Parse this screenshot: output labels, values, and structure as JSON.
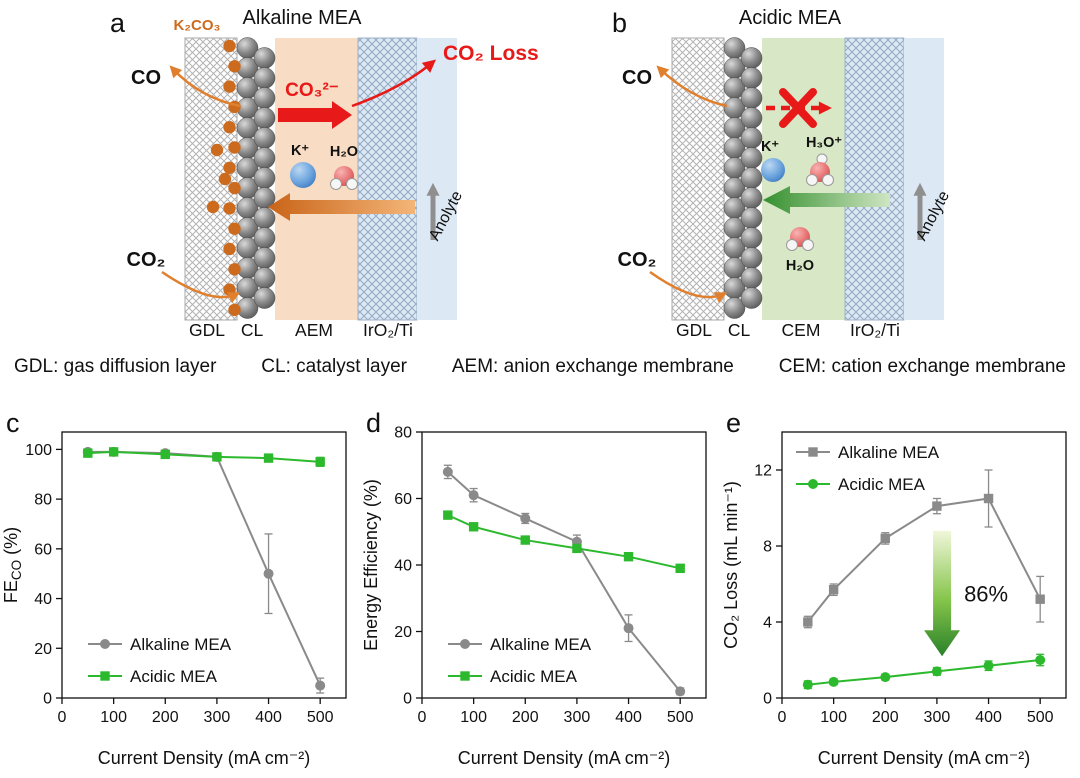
{
  "panels": {
    "a": {
      "letter": "a",
      "title": "Alkaline MEA",
      "k2co3_label": "K₂CO₃",
      "co_label": "CO",
      "co2_label": "CO₂",
      "carbonate_label": "CO₃²⁻",
      "co2_loss_label": "CO₂ Loss",
      "k_label": "K⁺",
      "h2o_label": "H₂O",
      "anolyte_label": "Anolyte",
      "layer_labels": [
        "GDL",
        "CL",
        "AEM",
        "IrO₂/Ti"
      ]
    },
    "b": {
      "letter": "b",
      "title": "Acidic MEA",
      "co_label": "CO",
      "co2_label": "CO₂",
      "k_label": "K⁺",
      "h3o_label": "H₃O⁺",
      "h2o_label": "H₂O",
      "anolyte_label": "Anolyte",
      "layer_labels": [
        "GDL",
        "CL",
        "CEM",
        "IrO₂/Ti"
      ]
    }
  },
  "abbreviations": [
    "GDL: gas diffusion layer",
    "CL: catalyst layer",
    "AEM: anion exchange membrane",
    "CEM: cation exchange membrane"
  ],
  "colors": {
    "alkaline_series": "#8a8a8a",
    "acidic_series": "#2db92d",
    "aem_fill": "#f8dcc3",
    "cem_fill": "#d8e7c5",
    "anolyte_fill": "#dce8f3",
    "carbonate_orange": "#cc6b1e",
    "alert_red": "#e81919"
  },
  "chart_data": [
    {
      "type": "line",
      "panel": "c",
      "x": [
        50,
        100,
        200,
        300,
        400,
        500
      ],
      "xlabel": "Current Density (mA cm⁻²)",
      "ylabel_parts": [
        {
          "t": "FE"
        },
        {
          "t": "CO",
          "sub": true
        },
        {
          "t": " (%)"
        }
      ],
      "xlim": [
        0,
        550
      ],
      "xticks": [
        0,
        100,
        200,
        300,
        400,
        500
      ],
      "ylim": [
        0,
        107
      ],
      "yticks": [
        0,
        20,
        40,
        60,
        80,
        100
      ],
      "legend_position": "bottom-left",
      "series": [
        {
          "name": "Alkaline MEA",
          "color": "#8a8a8a",
          "marker": "circle",
          "values": [
            99,
            99,
            98.5,
            97,
            50,
            5
          ],
          "errors": [
            1,
            1,
            1,
            1,
            16,
            3
          ]
        },
        {
          "name": "Acidic MEA",
          "color": "#2db92d",
          "marker": "square",
          "values": [
            98.5,
            99,
            98,
            97,
            96.5,
            95
          ],
          "errors": [
            0.8,
            0.5,
            0.5,
            0.8,
            1,
            1.8
          ]
        }
      ]
    },
    {
      "type": "line",
      "panel": "d",
      "x": [
        50,
        100,
        200,
        300,
        400,
        500
      ],
      "xlabel": "Current Density (mA cm⁻²)",
      "ylabel_parts": [
        {
          "t": "Energy Efficiency (%)"
        }
      ],
      "xlim": [
        0,
        550
      ],
      "xticks": [
        0,
        100,
        200,
        300,
        400,
        500
      ],
      "ylim": [
        0,
        80
      ],
      "yticks": [
        0,
        20,
        40,
        60,
        80
      ],
      "legend_position": "bottom-left",
      "series": [
        {
          "name": "Alkaline MEA",
          "color": "#8a8a8a",
          "marker": "circle",
          "values": [
            68,
            61,
            54,
            47,
            21,
            2
          ],
          "errors": [
            2,
            2,
            1.5,
            2,
            4,
            1
          ]
        },
        {
          "name": "Acidic MEA",
          "color": "#2db92d",
          "marker": "square",
          "values": [
            55,
            51.5,
            47.5,
            45,
            42.5,
            39
          ],
          "errors": [
            1,
            1,
            1,
            1,
            1,
            1
          ]
        }
      ]
    },
    {
      "type": "line",
      "panel": "e",
      "x": [
        50,
        100,
        200,
        300,
        400,
        500
      ],
      "xlabel": "Current Density (mA cm⁻²)",
      "ylabel_parts": [
        {
          "t": "CO₂ Loss (mL min⁻¹)"
        }
      ],
      "xlim": [
        0,
        550
      ],
      "xticks": [
        0,
        100,
        200,
        300,
        400,
        500
      ],
      "ylim": [
        0,
        14
      ],
      "yticks": [
        0,
        4,
        8,
        12
      ],
      "legend_position": "top-left",
      "series": [
        {
          "name": "Alkaline MEA",
          "color": "#8a8a8a",
          "marker": "square",
          "values": [
            4,
            5.7,
            8.4,
            10.1,
            10.5,
            5.2
          ],
          "errors": [
            0.3,
            0.3,
            0.3,
            0.4,
            1.5,
            1.2
          ]
        },
        {
          "name": "Acidic MEA",
          "color": "#2db92d",
          "marker": "circle",
          "values": [
            0.7,
            0.85,
            1.1,
            1.4,
            1.7,
            2.0
          ],
          "errors": [
            0.2,
            0.15,
            0.15,
            0.2,
            0.25,
            0.3
          ]
        }
      ],
      "annotation": {
        "text": "86%",
        "x": 310,
        "y_from": 8.8,
        "y_to": 2.2
      }
    }
  ]
}
